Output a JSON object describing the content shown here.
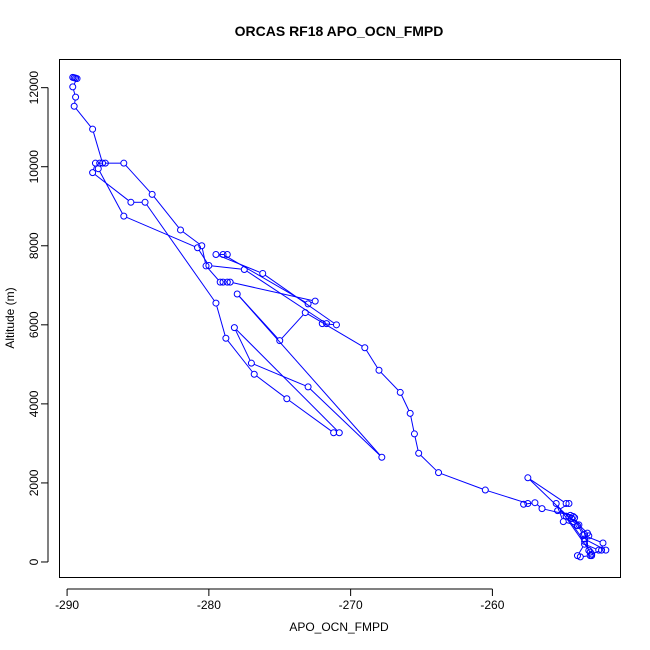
{
  "chart_data": {
    "type": "line",
    "title": "ORCAS RF18 APO_OCN_FMPD",
    "xlabel": "APO_OCN_FMPD",
    "ylabel": "Altitude (m)",
    "xlim": [
      -290.5,
      -251.0
    ],
    "ylim": [
      -380,
      12700
    ],
    "xticks": [
      -290,
      -280,
      -270,
      -260
    ],
    "xtick_labels": [
      "-290",
      "-280",
      "-270",
      "-260"
    ],
    "yticks": [
      0,
      2000,
      4000,
      6000,
      8000,
      10000,
      12000
    ],
    "ytick_labels": [
      "0",
      "2000",
      "4000",
      "6000",
      "8000",
      "10000",
      "12000"
    ],
    "marker": "open-circle",
    "series": [
      {
        "color": "#0000ff",
        "points": [
          [
            -289.6,
            12260
          ],
          [
            -289.5,
            12250
          ],
          [
            -289.4,
            12240
          ],
          [
            -289.3,
            12230
          ],
          [
            -289.6,
            12020
          ],
          [
            -289.4,
            11760
          ],
          [
            -289.5,
            11530
          ],
          [
            -288.2,
            10950
          ],
          [
            -287.5,
            10090
          ],
          [
            -286.0,
            10090
          ],
          [
            -284.0,
            9300
          ],
          [
            -282.0,
            8400
          ],
          [
            -280.5,
            8000
          ],
          [
            -280.2,
            7490
          ],
          [
            -279.2,
            7080
          ],
          [
            -279.0,
            7080
          ],
          [
            -278.7,
            7080
          ],
          [
            -278.5,
            7080
          ],
          [
            -272.5,
            6600
          ],
          [
            -273.0,
            6530
          ],
          [
            -279.0,
            7780
          ],
          [
            -278.7,
            7780
          ],
          [
            -279.5,
            7780
          ],
          [
            -276.2,
            7300
          ],
          [
            -271.0,
            6000
          ],
          [
            -272.0,
            6030
          ],
          [
            -271.7,
            6030
          ],
          [
            -277.5,
            7400
          ],
          [
            -280.0,
            7500
          ],
          [
            -280.8,
            7950
          ],
          [
            -286.0,
            8750
          ],
          [
            -287.8,
            9950
          ],
          [
            -287.7,
            10090
          ],
          [
            -287.3,
            10090
          ],
          [
            -288.0,
            10090
          ],
          [
            -288.2,
            9850
          ],
          [
            -285.5,
            9100
          ],
          [
            -284.5,
            9100
          ],
          [
            -279.5,
            6550
          ],
          [
            -278.8,
            5660
          ],
          [
            -276.8,
            4750
          ],
          [
            -274.5,
            4130
          ],
          [
            -271.2,
            3270
          ],
          [
            -270.8,
            3270
          ],
          [
            -278.2,
            5930
          ],
          [
            -277.0,
            5030
          ],
          [
            -273.0,
            4430
          ],
          [
            -267.8,
            2650
          ],
          [
            -278.0,
            6780
          ],
          [
            -275.0,
            5600
          ],
          [
            -273.2,
            6310
          ],
          [
            -269.0,
            5420
          ],
          [
            -268.0,
            4850
          ],
          [
            -266.5,
            4290
          ],
          [
            -265.8,
            3760
          ],
          [
            -265.5,
            3240
          ],
          [
            -265.2,
            2750
          ],
          [
            -263.8,
            2260
          ],
          [
            -260.5,
            1820
          ],
          [
            -257.5,
            1480
          ],
          [
            -257.8,
            1460
          ],
          [
            -257.0,
            1500
          ],
          [
            -256.5,
            1350
          ],
          [
            -254.5,
            1180
          ],
          [
            -254.2,
            1120
          ],
          [
            -253.5,
            700
          ],
          [
            -253.2,
            290
          ],
          [
            -253.1,
            160
          ],
          [
            -253.8,
            130
          ],
          [
            -254.0,
            160
          ],
          [
            -253.5,
            450
          ],
          [
            -252.5,
            300
          ],
          [
            -252.0,
            300
          ],
          [
            -253.5,
            580
          ],
          [
            -253.2,
            660
          ],
          [
            -253.3,
            730
          ],
          [
            -253.9,
            940
          ],
          [
            -254.4,
            1100
          ],
          [
            -254.6,
            1130
          ],
          [
            -254.8,
            1160
          ],
          [
            -253.5,
            520
          ],
          [
            -253.0,
            160
          ],
          [
            -253.1,
            250
          ],
          [
            -255.5,
            1480
          ],
          [
            -255.0,
            1020
          ],
          [
            -254.0,
            920
          ],
          [
            -257.5,
            2130
          ],
          [
            -254.8,
            1480
          ],
          [
            -254.6,
            1480
          ],
          [
            -255.4,
            1300
          ],
          [
            -254.3,
            1150
          ],
          [
            -253.6,
            680
          ],
          [
            -252.2,
            480
          ],
          [
            -252.3,
            300
          ],
          [
            -253.0,
            200
          ]
        ]
      }
    ]
  }
}
